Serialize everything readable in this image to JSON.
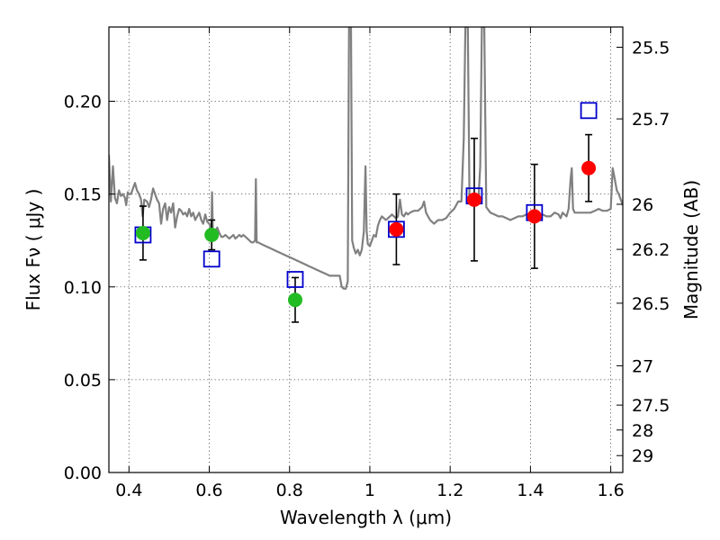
{
  "chart_data": {
    "type": "scatter",
    "xlabel": "Wavelength  λ (μm)",
    "ylabel": "Flux  Fν  ( μJy )",
    "y2label": "Magnitude (AB)",
    "xlim": [
      0.35,
      1.63
    ],
    "ylim": [
      0.0,
      0.24
    ],
    "grid": true,
    "x_ticks": [
      0.4,
      0.6,
      0.8,
      1.0,
      1.2,
      1.4,
      1.6
    ],
    "x_tick_labels": [
      "0.4",
      "0.6",
      "0.8",
      "1",
      "1.2",
      "1.4",
      "1.6"
    ],
    "y_ticks": [
      0.0,
      0.05,
      0.1,
      0.15,
      0.2
    ],
    "y_tick_labels": [
      "0.00",
      "0.05",
      "0.10",
      "0.15",
      "0.20"
    ],
    "y2_ticks": [
      {
        "label": "25.5",
        "flux": 0.2291
      },
      {
        "label": "25.7",
        "flux": 0.1905
      },
      {
        "label": "26",
        "flux": 0.1445
      },
      {
        "label": "26.2",
        "flux": 0.1202
      },
      {
        "label": "26.5",
        "flux": 0.0912
      },
      {
        "label": "27",
        "flux": 0.0575
      },
      {
        "label": "27.5",
        "flux": 0.0363
      },
      {
        "label": "28",
        "flux": 0.0229
      },
      {
        "label": "29",
        "flux": 0.0091
      }
    ],
    "series": [
      {
        "marker": "line",
        "color": "#808080",
        "points": [
          [
            0.35,
            0.171
          ],
          [
            0.355,
            0.146
          ],
          [
            0.36,
            0.165
          ],
          [
            0.365,
            0.148
          ],
          [
            0.37,
            0.145
          ],
          [
            0.375,
            0.152
          ],
          [
            0.38,
            0.149
          ],
          [
            0.385,
            0.15
          ],
          [
            0.39,
            0.148
          ],
          [
            0.393,
            0.144
          ],
          [
            0.397,
            0.151
          ],
          [
            0.4,
            0.15
          ],
          [
            0.405,
            0.15
          ],
          [
            0.41,
            0.153
          ],
          [
            0.415,
            0.156
          ],
          [
            0.42,
            0.152
          ],
          [
            0.425,
            0.15
          ],
          [
            0.43,
            0.147
          ],
          [
            0.434,
            0.138
          ],
          [
            0.438,
            0.147
          ],
          [
            0.445,
            0.146
          ],
          [
            0.45,
            0.143
          ],
          [
            0.455,
            0.147
          ],
          [
            0.46,
            0.153
          ],
          [
            0.465,
            0.15
          ],
          [
            0.47,
            0.147
          ],
          [
            0.475,
            0.145
          ],
          [
            0.48,
            0.134
          ],
          [
            0.485,
            0.142
          ],
          [
            0.49,
            0.145
          ],
          [
            0.495,
            0.136
          ],
          [
            0.5,
            0.143
          ],
          [
            0.505,
            0.14
          ],
          [
            0.51,
            0.145
          ],
          [
            0.515,
            0.132
          ],
          [
            0.52,
            0.138
          ],
          [
            0.525,
            0.142
          ],
          [
            0.53,
            0.141
          ],
          [
            0.535,
            0.139
          ],
          [
            0.54,
            0.14
          ],
          [
            0.545,
            0.138
          ],
          [
            0.55,
            0.142
          ],
          [
            0.555,
            0.138
          ],
          [
            0.56,
            0.14
          ],
          [
            0.565,
            0.136
          ],
          [
            0.57,
            0.138
          ],
          [
            0.575,
            0.14
          ],
          [
            0.58,
            0.136
          ],
          [
            0.585,
            0.134
          ],
          [
            0.59,
            0.139
          ],
          [
            0.595,
            0.135
          ],
          [
            0.6,
            0.134
          ],
          [
            0.605,
            0.131
          ],
          [
            0.607,
            0.151
          ],
          [
            0.609,
            0.131
          ],
          [
            0.615,
            0.13
          ],
          [
            0.62,
            0.132
          ],
          [
            0.625,
            0.129
          ],
          [
            0.63,
            0.127
          ],
          [
            0.635,
            0.127
          ],
          [
            0.64,
            0.128
          ],
          [
            0.645,
            0.127
          ],
          [
            0.65,
            0.126
          ],
          [
            0.655,
            0.127
          ],
          [
            0.66,
            0.128
          ],
          [
            0.665,
            0.126
          ],
          [
            0.67,
            0.127
          ],
          [
            0.675,
            0.128
          ],
          [
            0.68,
            0.127
          ],
          [
            0.685,
            0.128
          ],
          [
            0.69,
            0.127
          ],
          [
            0.695,
            0.126
          ],
          [
            0.7,
            0.125
          ],
          [
            0.705,
            0.124
          ],
          [
            0.71,
            0.124
          ],
          [
            0.714,
            0.125
          ],
          [
            0.716,
            0.158
          ],
          [
            0.718,
            0.124
          ],
          [
            0.722,
            0.124
          ],
          [
            0.73,
            0.123
          ],
          [
            0.74,
            0.122
          ],
          [
            0.75,
            0.121
          ],
          [
            0.76,
            0.12
          ],
          [
            0.77,
            0.119
          ],
          [
            0.78,
            0.118
          ],
          [
            0.79,
            0.117
          ],
          [
            0.8,
            0.116
          ],
          [
            0.81,
            0.115
          ],
          [
            0.82,
            0.114
          ],
          [
            0.83,
            0.113
          ],
          [
            0.84,
            0.112
          ],
          [
            0.85,
            0.111
          ],
          [
            0.86,
            0.11
          ],
          [
            0.87,
            0.109
          ],
          [
            0.88,
            0.108
          ],
          [
            0.89,
            0.107
          ],
          [
            0.9,
            0.106
          ],
          [
            0.91,
            0.106
          ],
          [
            0.92,
            0.106
          ],
          [
            0.925,
            0.106
          ],
          [
            0.93,
            0.1
          ],
          [
            0.935,
            0.099
          ],
          [
            0.94,
            0.099
          ],
          [
            0.945,
            0.103
          ],
          [
            0.948,
            0.24
          ],
          [
            0.953,
            0.24
          ],
          [
            0.956,
            0.125
          ],
          [
            0.96,
            0.121
          ],
          [
            0.965,
            0.118
          ],
          [
            0.97,
            0.12
          ],
          [
            0.975,
            0.117
          ],
          [
            0.98,
            0.12
          ],
          [
            0.985,
            0.13
          ],
          [
            0.989,
            0.165
          ],
          [
            0.992,
            0.13
          ],
          [
            0.995,
            0.123
          ],
          [
            1.0,
            0.122
          ],
          [
            1.005,
            0.125
          ],
          [
            1.01,
            0.128
          ],
          [
            1.015,
            0.127
          ],
          [
            1.02,
            0.133
          ],
          [
            1.025,
            0.136
          ],
          [
            1.03,
            0.138
          ],
          [
            1.035,
            0.137
          ],
          [
            1.04,
            0.136
          ],
          [
            1.045,
            0.137
          ],
          [
            1.05,
            0.138
          ],
          [
            1.055,
            0.139
          ],
          [
            1.06,
            0.138
          ],
          [
            1.065,
            0.137
          ],
          [
            1.07,
            0.138
          ],
          [
            1.075,
            0.147
          ],
          [
            1.08,
            0.139
          ],
          [
            1.085,
            0.138
          ],
          [
            1.09,
            0.14
          ],
          [
            1.095,
            0.139
          ],
          [
            1.1,
            0.14
          ],
          [
            1.11,
            0.141
          ],
          [
            1.12,
            0.141
          ],
          [
            1.13,
            0.143
          ],
          [
            1.135,
            0.146
          ],
          [
            1.14,
            0.14
          ],
          [
            1.145,
            0.138
          ],
          [
            1.15,
            0.136
          ],
          [
            1.155,
            0.135
          ],
          [
            1.16,
            0.134
          ],
          [
            1.17,
            0.136
          ],
          [
            1.18,
            0.136
          ],
          [
            1.19,
            0.137
          ],
          [
            1.2,
            0.14
          ],
          [
            1.21,
            0.142
          ],
          [
            1.22,
            0.146
          ],
          [
            1.228,
            0.146
          ],
          [
            1.234,
            0.18
          ],
          [
            1.238,
            0.24
          ],
          [
            1.244,
            0.24
          ],
          [
            1.248,
            0.15
          ],
          [
            1.255,
            0.148
          ],
          [
            1.26,
            0.145
          ],
          [
            1.265,
            0.15
          ],
          [
            1.27,
            0.145
          ],
          [
            1.275,
            0.165
          ],
          [
            1.279,
            0.24
          ],
          [
            1.285,
            0.24
          ],
          [
            1.29,
            0.143
          ],
          [
            1.3,
            0.14
          ],
          [
            1.31,
            0.139
          ],
          [
            1.32,
            0.138
          ],
          [
            1.33,
            0.138
          ],
          [
            1.34,
            0.137
          ],
          [
            1.35,
            0.136
          ],
          [
            1.36,
            0.137
          ],
          [
            1.37,
            0.138
          ],
          [
            1.38,
            0.138
          ],
          [
            1.39,
            0.139
          ],
          [
            1.4,
            0.138
          ],
          [
            1.41,
            0.137
          ],
          [
            1.42,
            0.138
          ],
          [
            1.43,
            0.139
          ],
          [
            1.44,
            0.138
          ],
          [
            1.45,
            0.138
          ],
          [
            1.46,
            0.14
          ],
          [
            1.47,
            0.139
          ],
          [
            1.475,
            0.137
          ],
          [
            1.48,
            0.14
          ],
          [
            1.49,
            0.138
          ],
          [
            1.495,
            0.142
          ],
          [
            1.5,
            0.158
          ],
          [
            1.503,
            0.164
          ],
          [
            1.506,
            0.142
          ],
          [
            1.51,
            0.14
          ],
          [
            1.52,
            0.14
          ],
          [
            1.53,
            0.14
          ],
          [
            1.54,
            0.14
          ],
          [
            1.55,
            0.14
          ],
          [
            1.56,
            0.141
          ],
          [
            1.57,
            0.142
          ],
          [
            1.58,
            0.141
          ],
          [
            1.59,
            0.141
          ],
          [
            1.6,
            0.142
          ],
          [
            1.605,
            0.164
          ],
          [
            1.61,
            0.158
          ],
          [
            1.615,
            0.152
          ],
          [
            1.62,
            0.15
          ],
          [
            1.63,
            0.144
          ]
        ]
      },
      {
        "marker": "circle",
        "color": "#22bb22",
        "points": [
          {
            "x": 0.435,
            "y": 0.129,
            "err": 0.0145
          },
          {
            "x": 0.606,
            "y": 0.128,
            "err": 0.008
          },
          {
            "x": 0.814,
            "y": 0.093,
            "err": 0.012
          }
        ]
      },
      {
        "marker": "circle",
        "color": "#ff0000",
        "points": [
          {
            "x": 1.066,
            "y": 0.131,
            "err": 0.019
          },
          {
            "x": 1.26,
            "y": 0.147,
            "err": 0.033
          },
          {
            "x": 1.41,
            "y": 0.138,
            "err": 0.028
          },
          {
            "x": 1.545,
            "y": 0.164,
            "err": 0.018
          }
        ]
      },
      {
        "marker": "open-square",
        "color": "#0000cc",
        "points": [
          {
            "x": 0.435,
            "y": 0.128
          },
          {
            "x": 0.606,
            "y": 0.115
          },
          {
            "x": 0.814,
            "y": 0.104
          },
          {
            "x": 1.066,
            "y": 0.131
          },
          {
            "x": 1.26,
            "y": 0.149
          },
          {
            "x": 1.41,
            "y": 0.14
          },
          {
            "x": 1.545,
            "y": 0.195
          }
        ]
      }
    ]
  }
}
